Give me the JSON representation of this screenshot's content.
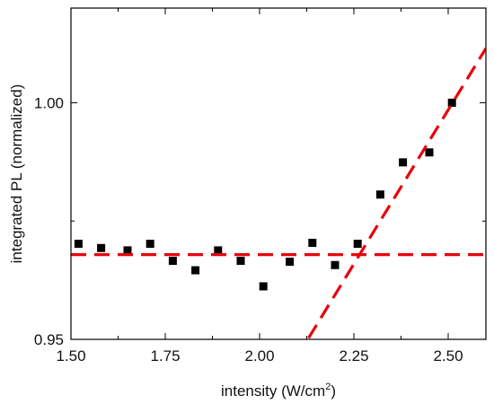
{
  "chart_data": {
    "type": "scatter",
    "title": "",
    "xlabel": "intensity (W/cm",
    "xlabel_sup": "2",
    "xlabel_end": ")",
    "ylabel": "integrated PL (normalized)",
    "xlim": [
      1.5,
      2.6
    ],
    "ylim": [
      0.95,
      1.02
    ],
    "xticks": [
      1.5,
      1.75,
      2.0,
      2.25,
      2.5
    ],
    "xtick_labels": [
      "1.50",
      "1.75",
      "2.00",
      "2.25",
      "2.50"
    ],
    "yticks": [
      0.95,
      1.0
    ],
    "ytick_labels": [
      "0.95",
      "1.00"
    ],
    "grid": false,
    "point_color": "#000000",
    "line_color": "#e8000b",
    "series": [
      {
        "type": "scatter",
        "x": [
          1.52,
          1.58,
          1.65,
          1.71,
          1.77,
          1.83,
          1.89,
          1.95,
          2.01,
          2.08,
          2.14,
          2.2,
          2.26,
          2.32,
          2.38,
          2.45,
          2.51
        ],
        "y": [
          0.9702,
          0.9693,
          0.9688,
          0.9702,
          0.9666,
          0.9646,
          0.9688,
          0.9666,
          0.9612,
          0.9664,
          0.9704,
          0.9657,
          0.9702,
          0.9806,
          0.9874,
          0.9895,
          1.0
        ]
      },
      {
        "type": "line",
        "style": "dashed",
        "x": [
          1.5,
          2.6
        ],
        "y": [
          0.9679,
          0.9679
        ]
      },
      {
        "type": "line",
        "style": "dashed",
        "x": [
          2.13,
          2.6
        ],
        "y": [
          0.9503,
          1.0115
        ]
      }
    ]
  }
}
